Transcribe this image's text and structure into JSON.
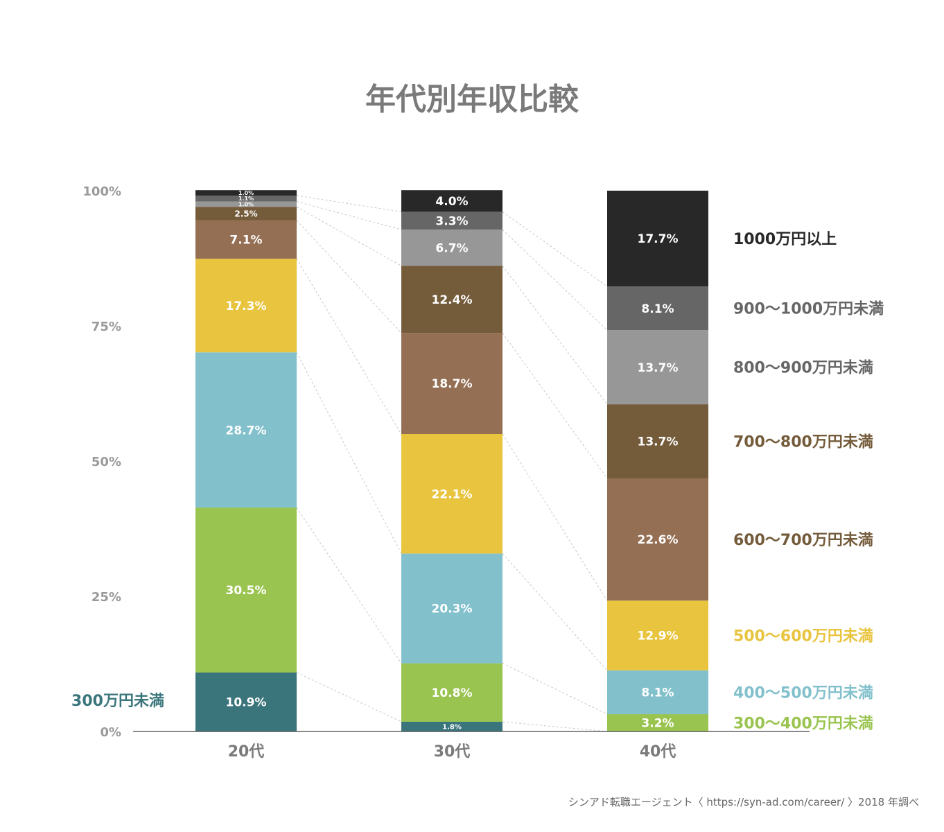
{
  "chart_data": {
    "type": "bar",
    "stacked": true,
    "title": "年代別年収比較",
    "categories": [
      "20代",
      "30代",
      "40代"
    ],
    "y_ticks": [
      "0%",
      "25%",
      "50%",
      "75%",
      "100%"
    ],
    "ylim": [
      0,
      100
    ],
    "grid": false,
    "series": [
      {
        "name": "300万円未満",
        "color": "#3b757c",
        "values": [
          10.9,
          1.8,
          0
        ],
        "labels": [
          "10.9%",
          "1.8%",
          ""
        ]
      },
      {
        "name": "300～400万円未満",
        "color": "#9ac450",
        "values": [
          30.5,
          10.8,
          3.2
        ],
        "labels": [
          "30.5%",
          "10.8%",
          "3.2%"
        ]
      },
      {
        "name": "400～500万円未満",
        "color": "#82c0cc",
        "values": [
          28.7,
          20.3,
          8.1
        ],
        "labels": [
          "28.7%",
          "20.3%",
          "8.1%"
        ]
      },
      {
        "name": "500～600万円未満",
        "color": "#e9c43f",
        "values": [
          17.3,
          22.1,
          12.9
        ],
        "labels": [
          "17.3%",
          "22.1%",
          "12.9%"
        ]
      },
      {
        "name": "600～700万円未満",
        "color": "#946f54",
        "values": [
          7.1,
          18.7,
          22.6
        ],
        "labels": [
          "7.1%",
          "18.7%",
          "22.6%"
        ]
      },
      {
        "name": "700～800万円未満",
        "color": "#745b3a",
        "values": [
          2.5,
          12.4,
          13.7
        ],
        "labels": [
          "2.5%",
          "12.4%",
          "13.7%"
        ]
      },
      {
        "name": "800～900万円未満",
        "color": "#979797",
        "values": [
          1.0,
          6.7,
          13.7
        ],
        "labels": [
          "1.0%",
          "6.7%",
          "13.7%"
        ]
      },
      {
        "name": "900～1000万円未満",
        "color": "#666666",
        "values": [
          1.1,
          3.3,
          8.1
        ],
        "labels": [
          "1.1%",
          "3.3%",
          "8.1%"
        ]
      },
      {
        "name": "1000万円以上",
        "color": "#282828",
        "values": [
          1.0,
          4.0,
          17.7
        ],
        "labels": [
          "1.0%",
          "4.0%",
          "17.7%"
        ]
      }
    ],
    "legend_text_colors": {
      "300万円未満": "#3b757c",
      "300～400万円未満": "#9ac450",
      "400～500万円未満": "#82c0cc",
      "500～600万円未満": "#e9c43f",
      "600～700万円未満": "#745b3a",
      "700～800万円未満": "#745b3a",
      "800～900万円未満": "#666666",
      "900～1000万円未満": "#666666",
      "1000万円以上": "#282828"
    },
    "source": "シンアド転職エージェント〈 https://syn-ad.com/career/ 〉2018 年調べ"
  }
}
